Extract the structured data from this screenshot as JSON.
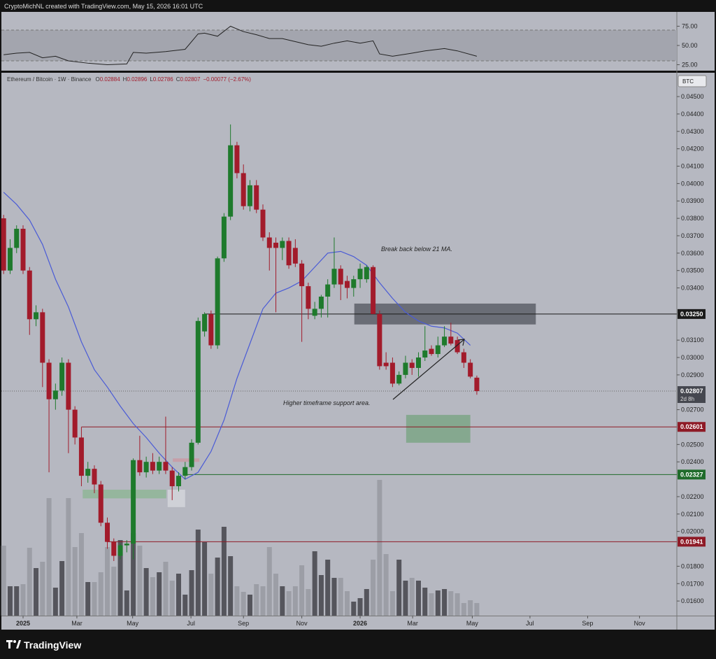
{
  "chart_data": {
    "type": "candlestick",
    "credit": "CryptoMichNL created with TradingView.com, May 15, 2026 16:01 UTC",
    "symbol": "Ethereum / Bitcoin · 1W · Binance",
    "ohlc_header": {
      "o_label": "O",
      "open": "0.02884",
      "h_label": "H",
      "high": "0.02896",
      "l_label": "L",
      "low": "0.02786",
      "c_label": "C",
      "close": "0.02807",
      "change": "−0.00077 (−2.67%)"
    },
    "currency": "BTC",
    "brand": "TradingView",
    "annotations": [
      "Break back below 21 MA.",
      "Higher timeframe support area."
    ],
    "x": [
      -3,
      -2,
      -1,
      0,
      1,
      2,
      3,
      4,
      5,
      6,
      7,
      8,
      9,
      10,
      11,
      12,
      13,
      14,
      15,
      16,
      17,
      18,
      19,
      20,
      21,
      22,
      23,
      24,
      25,
      26,
      27,
      28,
      29,
      30,
      31,
      32,
      33,
      34,
      35,
      36,
      37,
      38,
      39,
      40,
      41,
      42,
      43,
      44,
      45,
      46,
      47,
      48,
      49,
      50,
      51,
      52,
      53,
      54,
      55,
      56,
      57,
      58,
      59,
      60,
      61,
      62,
      63,
      64,
      65,
      66,
      67,
      68,
      69,
      70
    ],
    "open": [
      0.038,
      0.035,
      0.0363,
      0.0374,
      0.035,
      0.0322,
      0.0326,
      0.0297,
      0.0276,
      0.0281,
      0.0297,
      0.027,
      0.0254,
      0.0232,
      0.0236,
      0.0227,
      0.0205,
      0.0194,
      0.0186,
      0.0192,
      0.0193,
      0.0241,
      0.0234,
      0.024,
      0.0235,
      0.024,
      0.0235,
      0.0226,
      0.0232,
      0.0237,
      0.0251,
      0.0315,
      0.0325,
      0.0307,
      0.0357,
      0.0381,
      0.0422,
      0.0406,
      0.0387,
      0.0399,
      0.0385,
      0.0369,
      0.0366,
      0.0363,
      0.0367,
      0.0363,
      0.0354,
      0.0341,
      0.0324,
      0.0328,
      0.0335,
      0.0342,
      0.0351,
      0.0344,
      0.034,
      0.0345,
      0.0345,
      0.0352,
      0.0325,
      0.0297,
      0.0297,
      0.0285,
      0.029,
      0.0297,
      0.0294,
      0.03,
      0.0305,
      0.0302,
      0.0307,
      0.0312,
      0.031,
      0.0303,
      0.0297,
      0.02884
    ],
    "high": [
      0.0382,
      0.0368,
      0.0376,
      0.0376,
      0.0352,
      0.033,
      0.0328,
      0.0299,
      0.0285,
      0.03,
      0.0299,
      0.0272,
      0.026,
      0.024,
      0.0238,
      0.0229,
      0.0208,
      0.0196,
      0.0193,
      0.0195,
      0.0242,
      0.0255,
      0.0243,
      0.0245,
      0.0243,
      0.0266,
      0.0237,
      0.0234,
      0.024,
      0.0253,
      0.0323,
      0.0326,
      0.0327,
      0.0358,
      0.0383,
      0.0434,
      0.0424,
      0.0411,
      0.0402,
      0.0402,
      0.0388,
      0.0372,
      0.0369,
      0.0369,
      0.0369,
      0.0368,
      0.0356,
      0.0343,
      0.0332,
      0.0336,
      0.0345,
      0.0369,
      0.0353,
      0.0347,
      0.0347,
      0.0354,
      0.0353,
      0.0353,
      0.0327,
      0.0303,
      0.03,
      0.0292,
      0.0301,
      0.0299,
      0.0303,
      0.0318,
      0.0307,
      0.0312,
      0.0318,
      0.032,
      0.0312,
      0.0305,
      0.0299,
      0.02896
    ],
    "low": [
      0.0348,
      0.0348,
      0.036,
      0.0348,
      0.0313,
      0.0318,
      0.0283,
      0.0234,
      0.027,
      0.0278,
      0.0245,
      0.025,
      0.0226,
      0.0228,
      0.0222,
      0.0203,
      0.019,
      0.0183,
      0.0184,
      0.0188,
      0.0184,
      0.0232,
      0.0231,
      0.0233,
      0.0233,
      0.0233,
      0.0218,
      0.0223,
      0.023,
      0.0235,
      0.025,
      0.0312,
      0.0305,
      0.0305,
      0.0355,
      0.0379,
      0.0403,
      0.0385,
      0.0384,
      0.0383,
      0.0367,
      0.035,
      0.0326,
      0.0356,
      0.0351,
      0.0352,
      0.0309,
      0.0322,
      0.0322,
      0.0323,
      0.0323,
      0.034,
      0.0333,
      0.0334,
      0.0335,
      0.034,
      0.0343,
      0.0325,
      0.0293,
      0.0293,
      0.0283,
      0.0284,
      0.0288,
      0.029,
      0.0289,
      0.0298,
      0.0301,
      0.03,
      0.0306,
      0.0307,
      0.0302,
      0.0294,
      0.0288,
      0.02786
    ],
    "close": [
      0.035,
      0.0363,
      0.0374,
      0.035,
      0.0322,
      0.0326,
      0.0297,
      0.0276,
      0.0281,
      0.0297,
      0.027,
      0.0254,
      0.0232,
      0.0236,
      0.0227,
      0.0205,
      0.0194,
      0.0186,
      0.0192,
      0.0193,
      0.0241,
      0.0234,
      0.024,
      0.0235,
      0.024,
      0.0235,
      0.0226,
      0.0232,
      0.0237,
      0.0251,
      0.0321,
      0.0325,
      0.0307,
      0.0357,
      0.0381,
      0.0422,
      0.0406,
      0.0387,
      0.0399,
      0.0385,
      0.0369,
      0.0363,
      0.0363,
      0.0367,
      0.0353,
      0.0354,
      0.0341,
      0.0328,
      0.0328,
      0.0335,
      0.0342,
      0.0351,
      0.0342,
      0.034,
      0.0345,
      0.0351,
      0.0352,
      0.0325,
      0.0295,
      0.0295,
      0.0285,
      0.029,
      0.0297,
      0.0294,
      0.03,
      0.0304,
      0.0302,
      0.0307,
      0.0312,
      0.0308,
      0.0303,
      0.0297,
      0.0289,
      0.02807
    ],
    "volume": [
      100,
      42,
      42,
      45,
      97,
      68,
      77,
      168,
      40,
      78,
      168,
      98,
      118,
      48,
      48,
      62,
      98,
      70,
      108,
      36,
      118,
      100,
      68,
      55,
      62,
      77,
      50,
      60,
      30,
      65,
      123,
      105,
      60,
      83,
      127,
      85,
      42,
      34,
      30,
      45,
      42,
      98,
      60,
      42,
      35,
      42,
      72,
      38,
      92,
      58,
      80,
      54,
      54,
      35,
      20,
      25,
      38,
      80,
      194,
      88,
      35,
      80,
      50,
      54,
      50,
      40,
      32,
      36,
      38,
      35,
      32,
      18,
      22,
      18
    ],
    "up_color": "#1e7a2c",
    "down_color": "#a21b2b",
    "volume_up_color": "#55555c",
    "volume_down_color": "#9c9ea6",
    "ma_color": "#4a5bd6",
    "ma_x": [
      -3,
      -1,
      1,
      3,
      5,
      7,
      9,
      11,
      13,
      15,
      17,
      19,
      21,
      23,
      25,
      27,
      29,
      31,
      33,
      35,
      37,
      39,
      41,
      43,
      45,
      47,
      49,
      51,
      53,
      55,
      57,
      59,
      61,
      63,
      65,
      67,
      69
    ],
    "ma_values": [
      0.0395,
      0.0388,
      0.0379,
      0.0365,
      0.0345,
      0.0329,
      0.0309,
      0.0293,
      0.0283,
      0.0272,
      0.0262,
      0.0254,
      0.0245,
      0.0237,
      0.023,
      0.0234,
      0.0246,
      0.0264,
      0.0288,
      0.0308,
      0.0328,
      0.0337,
      0.034,
      0.0344,
      0.0352,
      0.036,
      0.0361,
      0.0358,
      0.0353,
      0.0343,
      0.0334,
      0.0326,
      0.0321,
      0.0318,
      0.0317,
      0.0314,
      0.0307
    ],
    "rsi_x": [
      -3,
      -1,
      1,
      3,
      5,
      7,
      10,
      13,
      16,
      17,
      19,
      22,
      25,
      27,
      28,
      30,
      32,
      34,
      36,
      38,
      40,
      42,
      44,
      46,
      48,
      50,
      52,
      54,
      55,
      57,
      60,
      62,
      65,
      67,
      70
    ],
    "rsi_values": [
      38,
      40,
      41,
      34,
      36,
      30,
      27,
      25,
      26,
      41,
      40,
      42,
      45,
      65,
      66,
      62,
      75,
      68,
      64,
      59,
      59,
      55,
      51,
      49,
      53,
      56,
      53,
      56,
      39,
      36,
      40,
      43,
      46,
      43,
      36
    ],
    "rsi_ylim": [
      18.2,
      92.7
    ],
    "rsi_band": [
      30,
      70
    ],
    "rsi_yticks": [
      {
        "value": 75,
        "label": "75.00"
      },
      {
        "value": 50,
        "label": "50.00"
      },
      {
        "value": 25,
        "label": "25.00"
      }
    ],
    "xlim": [
      -3.56,
      100.86
    ],
    "xticks": [
      {
        "value": 0,
        "label": "2025"
      },
      {
        "value": 8.3,
        "label": "Mar"
      },
      {
        "value": 16.9,
        "label": "May"
      },
      {
        "value": 25.9,
        "label": "Jul"
      },
      {
        "value": 34,
        "label": "Sep"
      },
      {
        "value": 43,
        "label": "Nov"
      },
      {
        "value": 52,
        "label": "2026"
      },
      {
        "value": 60.1,
        "label": "Mar"
      },
      {
        "value": 69.3,
        "label": "May"
      },
      {
        "value": 78.2,
        "label": "Jul"
      },
      {
        "value": 87.1,
        "label": "Sep"
      },
      {
        "value": 95.1,
        "label": "Nov"
      }
    ],
    "ylim": [
      0.01516,
      0.04637
    ],
    "yticks": [
      {
        "value": 0.045,
        "label": "0.04500"
      },
      {
        "value": 0.044,
        "label": "0.04400"
      },
      {
        "value": 0.043,
        "label": "0.04300"
      },
      {
        "value": 0.042,
        "label": "0.04200"
      },
      {
        "value": 0.041,
        "label": "0.04100"
      },
      {
        "value": 0.04,
        "label": "0.04000"
      },
      {
        "value": 0.039,
        "label": "0.03900"
      },
      {
        "value": 0.038,
        "label": "0.03800"
      },
      {
        "value": 0.037,
        "label": "0.03700"
      },
      {
        "value": 0.036,
        "label": "0.03600"
      },
      {
        "value": 0.035,
        "label": "0.03500"
      },
      {
        "value": 0.034,
        "label": "0.03400"
      },
      {
        "value": 0.031,
        "label": "0.03100"
      },
      {
        "value": 0.03,
        "label": "0.03000"
      },
      {
        "value": 0.029,
        "label": "0.02900"
      },
      {
        "value": 0.027,
        "label": "0.02700"
      },
      {
        "value": 0.025,
        "label": "0.02500"
      },
      {
        "value": 0.024,
        "label": "0.02400"
      },
      {
        "value": 0.022,
        "label": "0.02200"
      },
      {
        "value": 0.021,
        "label": "0.02100"
      },
      {
        "value": 0.02,
        "label": "0.02000"
      },
      {
        "value": 0.018,
        "label": "0.01800"
      },
      {
        "value": 0.017,
        "label": "0.01700"
      },
      {
        "value": 0.016,
        "label": "0.01600"
      }
    ],
    "levels": [
      {
        "value": 0.0325,
        "label": "0.03250",
        "from": 28,
        "color": "#1a1a1a"
      },
      {
        "value": 0.02601,
        "label": "0.02601",
        "from": 9,
        "color": "#8e1a26"
      },
      {
        "value": 0.02327,
        "label": "0.02327",
        "from": 25,
        "color": "#1f6b2a"
      },
      {
        "value": 0.01941,
        "label": "0.01941",
        "from": 12.9,
        "color": "#8e1a26"
      }
    ],
    "last_price": {
      "value": 0.02807,
      "label": "0.02807"
    },
    "countdown": "2d 8h",
    "zones": [
      {
        "x": [
          51.1,
          79.1
        ],
        "y": [
          0.0319,
          0.0331
        ],
        "color": "#5d5f68"
      },
      {
        "x": [
          59.1,
          69
        ],
        "y": [
          0.0251,
          0.0267
        ],
        "color": "#7da586"
      },
      {
        "x": [
          9.2,
          22.1
        ],
        "y": [
          0.0219,
          0.0224
        ],
        "color": "#8fb596"
      },
      {
        "x": [
          23.1,
          27.2
        ],
        "y": [
          0.024,
          0.0242
        ],
        "color": "#c99aa4"
      },
      {
        "x": [
          22.3,
          25
        ],
        "y": [
          0.0214,
          0.0224
        ],
        "color": "#d4d5db"
      }
    ]
  }
}
